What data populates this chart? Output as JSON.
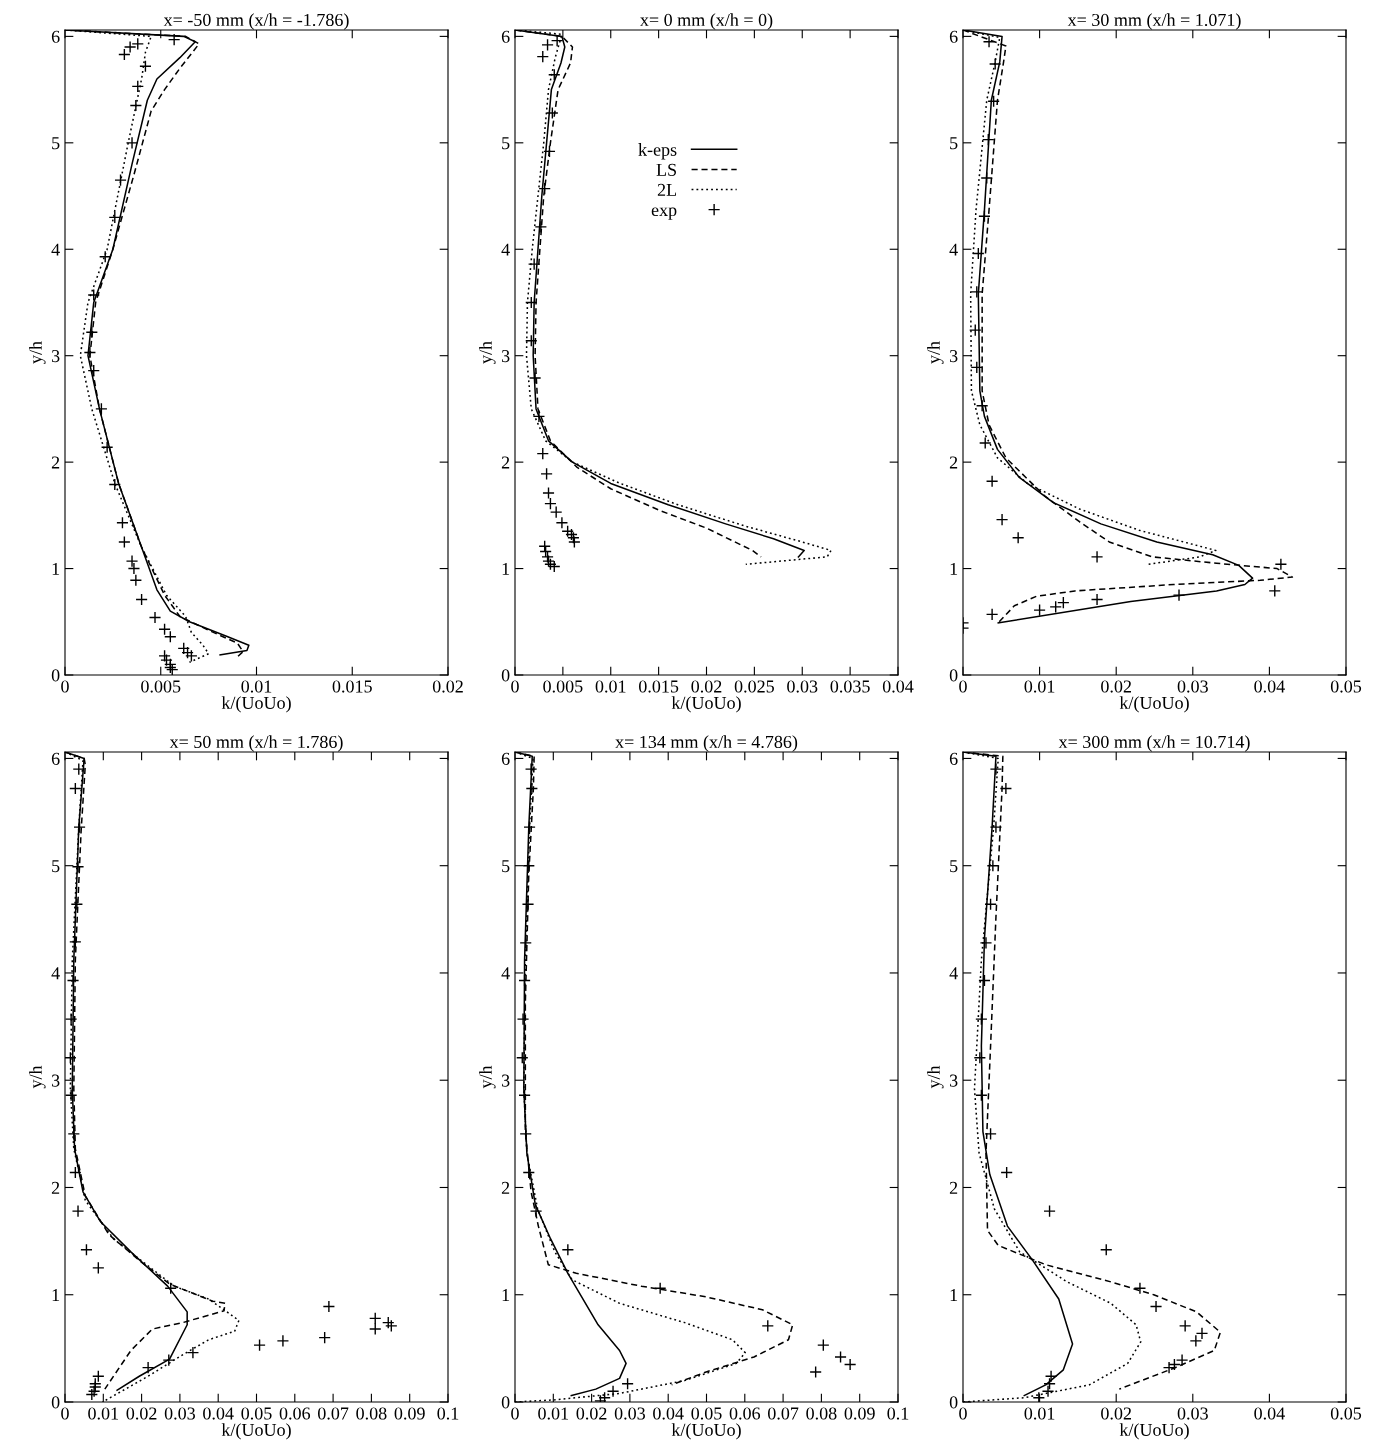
{
  "chart_data": [
    {
      "type": "line",
      "title": "x= -50 mm (x/h = -1.786)",
      "xlabel": "k/(UoUo)",
      "ylabel": "y/h",
      "xlim": [
        0,
        0.02
      ],
      "ylim": [
        0,
        6.06
      ],
      "xticks": [
        0,
        0.005,
        0.01,
        0.015,
        0.02
      ],
      "yticks": [
        0,
        1,
        2,
        3,
        4,
        5,
        6
      ],
      "series": [
        {
          "type": "line",
          "line_style": "solid",
          "marker": "none",
          "color": "#000000",
          "x": [
            0,
            0.0062,
            0.0068,
            0.006,
            0.0048,
            0.0043,
            0.0035,
            0.0025,
            0.0015,
            0.0012,
            0.0018,
            0.0028,
            0.004,
            0.0048,
            0.0055,
            0.0065,
            0.0085,
            0.0096,
            0.0095,
            0.0081
          ],
          "values": [
            6.06,
            6.0,
            5.95,
            5.8,
            5.6,
            5.4,
            4.8,
            4.0,
            3.5,
            3.0,
            2.5,
            1.8,
            1.2,
            0.8,
            0.6,
            0.5,
            0.36,
            0.28,
            0.23,
            0.19
          ]
        },
        {
          "type": "line",
          "line_style": "dashed",
          "marker": "none",
          "color": "#000000",
          "x": [
            0,
            0.0063,
            0.007,
            0.006,
            0.0052,
            0.0045,
            0.0036,
            0.0025,
            0.0016,
            0.0013,
            0.0018,
            0.0028,
            0.004,
            0.0052,
            0.006,
            0.0075,
            0.009,
            0.0093,
            0.009
          ],
          "values": [
            6.06,
            6.0,
            5.93,
            5.7,
            5.5,
            5.3,
            4.7,
            4.0,
            3.5,
            3.0,
            2.5,
            1.8,
            1.2,
            0.75,
            0.55,
            0.42,
            0.3,
            0.22,
            0.17
          ]
        },
        {
          "type": "line",
          "line_style": "dotted",
          "marker": "none",
          "color": "#000000",
          "x": [
            0,
            0.0045,
            0.0042,
            0.004,
            0.0033,
            0.0022,
            0.0012,
            0.0008,
            0.0014,
            0.0026,
            0.004,
            0.0053,
            0.0063,
            0.0066,
            0.0072,
            0.0075,
            0.0065
          ],
          "values": [
            6.06,
            6.0,
            5.85,
            5.6,
            5.0,
            4.0,
            3.5,
            3.0,
            2.5,
            1.8,
            1.2,
            0.75,
            0.55,
            0.4,
            0.28,
            0.2,
            0.12
          ]
        },
        {
          "type": "scatter",
          "marker": "cross",
          "color": "#000000",
          "x": [
            0.0057,
            0.0038,
            0.0034,
            0.0031,
            0.0042,
            0.0038,
            0.0037,
            0.0035,
            0.0029,
            0.0026,
            0.0021,
            0.0015,
            0.0014,
            0.0013,
            0.0015,
            0.0019,
            0.0022,
            0.0026,
            0.003,
            0.0031,
            0.0035,
            0.0036,
            0.0037,
            0.004,
            0.0047,
            0.0052,
            0.0055,
            0.0062,
            0.0064,
            0.0066,
            0.0052,
            0.0053,
            0.0055,
            0.0055,
            0.0056
          ],
          "values": [
            5.97,
            5.93,
            5.9,
            5.83,
            5.72,
            5.53,
            5.35,
            5.0,
            4.65,
            4.3,
            3.93,
            3.57,
            3.22,
            3.03,
            2.86,
            2.5,
            2.14,
            1.79,
            1.43,
            1.25,
            1.07,
            1.0,
            0.89,
            0.71,
            0.54,
            0.43,
            0.36,
            0.25,
            0.21,
            0.18,
            0.18,
            0.14,
            0.1,
            0.07,
            0.05
          ]
        }
      ]
    },
    {
      "type": "line",
      "title": "x= 0 mm (x/h = 0)",
      "xlabel": "k/(UoUo)",
      "ylabel": "y/h",
      "xlim": [
        0,
        0.04
      ],
      "ylim": [
        0,
        6.06
      ],
      "xticks": [
        0,
        0.005,
        0.01,
        0.015,
        0.02,
        0.025,
        0.03,
        0.035,
        0.04
      ],
      "yticks": [
        0,
        1,
        2,
        3,
        4,
        5,
        6
      ],
      "legend": "top",
      "series": [
        {
          "type": "line",
          "name": "k-eps",
          "line_style": "solid",
          "marker": "none",
          "color": "#000000",
          "x": [
            0,
            0.0049,
            0.0052,
            0.0048,
            0.0038,
            0.0033,
            0.0028,
            0.0024,
            0.002,
            0.0019,
            0.0022,
            0.0035,
            0.006,
            0.01,
            0.016,
            0.022,
            0.027,
            0.0302,
            0.0296
          ],
          "values": [
            6.06,
            6.0,
            5.9,
            5.75,
            5.5,
            5.0,
            4.5,
            4.0,
            3.5,
            3.0,
            2.5,
            2.2,
            2.0,
            1.8,
            1.6,
            1.42,
            1.28,
            1.17,
            1.11
          ]
        },
        {
          "type": "line",
          "name": "LS",
          "line_style": "dashed",
          "marker": "none",
          "color": "#000000",
          "x": [
            0,
            0.0049,
            0.006,
            0.0058,
            0.0045,
            0.0037,
            0.003,
            0.0026,
            0.0022,
            0.0021,
            0.0024,
            0.0037,
            0.0065,
            0.01,
            0.015,
            0.02,
            0.0248,
            0.0257
          ],
          "values": [
            6.06,
            6.0,
            5.9,
            5.75,
            5.5,
            5.0,
            4.5,
            4.0,
            3.5,
            3.0,
            2.5,
            2.2,
            1.95,
            1.75,
            1.55,
            1.38,
            1.17,
            1.11
          ]
        },
        {
          "type": "line",
          "name": "2L",
          "line_style": "dotted",
          "marker": "none",
          "color": "#000000",
          "x": [
            0,
            0.0049,
            0.0042,
            0.0035,
            0.003,
            0.0024,
            0.0018,
            0.0013,
            0.0012,
            0.0017,
            0.0032,
            0.006,
            0.011,
            0.017,
            0.024,
            0.03,
            0.033,
            0.0326,
            0.0241
          ],
          "values": [
            6.06,
            6.02,
            5.8,
            5.5,
            5.0,
            4.5,
            4.0,
            3.5,
            3.0,
            2.5,
            2.2,
            2.0,
            1.8,
            1.6,
            1.4,
            1.25,
            1.17,
            1.11,
            1.04
          ]
        },
        {
          "type": "scatter",
          "name": "exp",
          "marker": "cross",
          "color": "#000000",
          "x": [
            0.0044,
            0.0034,
            0.0029,
            0.0041,
            0.0039,
            0.0036,
            0.0031,
            0.0027,
            0.002,
            0.0017,
            0.0017,
            0.0021,
            0.0025,
            0.0029,
            0.0033,
            0.0035,
            0.0037,
            0.0043,
            0.0049,
            0.0055,
            0.0059,
            0.0061,
            0.0062,
            0.0031,
            0.0032,
            0.0034,
            0.0035,
            0.0037,
            0.0041
          ],
          "values": [
            5.96,
            5.92,
            5.81,
            5.64,
            5.28,
            4.92,
            4.57,
            4.21,
            3.86,
            3.5,
            3.14,
            2.79,
            2.43,
            2.08,
            1.89,
            1.71,
            1.61,
            1.53,
            1.43,
            1.35,
            1.32,
            1.29,
            1.25,
            1.21,
            1.16,
            1.11,
            1.07,
            1.04,
            1.02
          ]
        }
      ]
    },
    {
      "type": "line",
      "title": "x= 30 mm (x/h = 1.071)",
      "xlabel": "k/(UoUo)",
      "ylabel": "y/h",
      "xlim": [
        0,
        0.05
      ],
      "ylim": [
        0,
        6.06
      ],
      "xticks": [
        0,
        0.01,
        0.02,
        0.03,
        0.04,
        0.05
      ],
      "yticks": [
        0,
        1,
        2,
        3,
        4,
        5,
        6
      ],
      "series": [
        {
          "type": "line",
          "line_style": "solid",
          "marker": "none",
          "color": "#000000",
          "x": [
            0,
            0.0051,
            0.0048,
            0.0037,
            0.0028,
            0.002,
            0.0022,
            0.0028,
            0.0045,
            0.0073,
            0.0118,
            0.018,
            0.0253,
            0.0326,
            0.036,
            0.0378,
            0.0368,
            0.0331,
            0.0219,
            0.0046
          ],
          "values": [
            6.06,
            6.0,
            5.76,
            5.4,
            4.37,
            3.58,
            2.67,
            2.43,
            2.12,
            1.86,
            1.62,
            1.42,
            1.25,
            1.13,
            1.03,
            0.91,
            0.85,
            0.79,
            0.69,
            0.49
          ]
        },
        {
          "type": "line",
          "line_style": "dashed",
          "marker": "none",
          "color": "#000000",
          "x": [
            0,
            0.0056,
            0.0053,
            0.0045,
            0.0034,
            0.0025,
            0.0025,
            0.0034,
            0.0056,
            0.0107,
            0.0152,
            0.0191,
            0.0247,
            0.0331,
            0.041,
            0.043,
            0.0388,
            0.0275,
            0.0146,
            0.0096,
            0.0067,
            0.0046
          ],
          "values": [
            6.06,
            5.91,
            5.76,
            5.4,
            4.37,
            3.58,
            2.67,
            2.35,
            2.04,
            1.68,
            1.44,
            1.25,
            1.11,
            1.05,
            1.0,
            0.92,
            0.89,
            0.85,
            0.79,
            0.74,
            0.65,
            0.49
          ]
        },
        {
          "type": "line",
          "line_style": "dotted",
          "marker": "none",
          "color": "#000000",
          "x": [
            0,
            0.0048,
            0.0042,
            0.0031,
            0.0017,
            0.001,
            0.0011,
            0.0022,
            0.0045,
            0.0084,
            0.0152,
            0.023,
            0.033,
            0.0309,
            0.0242
          ],
          "values": [
            6.06,
            5.99,
            5.76,
            5.4,
            4.37,
            3.58,
            2.67,
            2.35,
            2.04,
            1.8,
            1.56,
            1.36,
            1.17,
            1.11,
            1.04
          ]
        },
        {
          "type": "scatter",
          "marker": "cross",
          "color": "#000000",
          "x": [
            0.0034,
            0.0042,
            0.004,
            0.0033,
            0.0031,
            0.0028,
            0.002,
            0.0018,
            0.0016,
            0.0018,
            0.0025,
            0.0029,
            0.0038,
            0.0051,
            0.0072,
            0.0175,
            0.0415,
            0.0407,
            0.0282,
            0.0175,
            0.0131,
            0.0121,
            0.01,
            0.0038,
            0,
            0
          ],
          "values": [
            5.95,
            5.74,
            5.39,
            5.03,
            4.67,
            4.31,
            3.96,
            3.6,
            3.24,
            2.89,
            2.53,
            2.18,
            1.82,
            1.46,
            1.29,
            1.11,
            1.04,
            0.79,
            0.75,
            0.71,
            0.68,
            0.64,
            0.61,
            0.57,
            0.49,
            0.44
          ]
        }
      ]
    },
    {
      "type": "line",
      "title": "x= 50 mm (x/h = 1.786)",
      "xlabel": "k/(UoUo)",
      "ylabel": "y/h",
      "xlim": [
        0,
        0.1
      ],
      "ylim": [
        0,
        6.06
      ],
      "xticks": [
        0,
        0.01,
        0.02,
        0.03,
        0.04,
        0.05,
        0.06,
        0.07,
        0.08,
        0.09,
        0.1
      ],
      "yticks": [
        0,
        1,
        2,
        3,
        4,
        5,
        6
      ],
      "series": [
        {
          "type": "line",
          "line_style": "solid",
          "marker": "none",
          "color": "#000000",
          "x": [
            0,
            0.005,
            0.0036,
            0.0023,
            0.0019,
            0.0025,
            0.0047,
            0.0093,
            0.0172,
            0.0268,
            0.0319,
            0.0319,
            0.0273,
            0.0194,
            0.0136
          ],
          "values": [
            6.06,
            6.0,
            5.36,
            4.12,
            2.92,
            2.36,
            1.96,
            1.68,
            1.4,
            1.08,
            0.84,
            0.72,
            0.4,
            0.24,
            0.11
          ]
        },
        {
          "type": "line",
          "line_style": "dashed",
          "marker": "none",
          "color": "#000000",
          "x": [
            0,
            0.005,
            0.0053,
            0.0042,
            0.0027,
            0.0023,
            0.0027,
            0.0053,
            0.0115,
            0.0194,
            0.0273,
            0.0386,
            0.0418,
            0.0415,
            0.0307,
            0.0228,
            0.0172,
            0.0104
          ],
          "values": [
            6.06,
            6.0,
            5.94,
            5.32,
            4.12,
            2.92,
            2.36,
            1.92,
            1.56,
            1.32,
            1.1,
            0.94,
            0.92,
            0.85,
            0.74,
            0.68,
            0.48,
            0.12
          ]
        },
        {
          "type": "line",
          "line_style": "dotted",
          "marker": "none",
          "color": "#000000",
          "x": [
            0,
            0.0047,
            0.0036,
            0.0019,
            0.0014,
            0.0023,
            0.0053,
            0.0127,
            0.0206,
            0.0285,
            0.0375,
            0.0415,
            0.0454,
            0.0443,
            0.0375,
            0.0307,
            0.0217,
            0.0098
          ],
          "values": [
            6.06,
            5.98,
            5.36,
            4.12,
            2.92,
            2.36,
            1.88,
            1.52,
            1.3,
            1.08,
            0.96,
            0.86,
            0.76,
            0.66,
            0.58,
            0.44,
            0.24,
            0.0
          ]
        },
        {
          "type": "scatter",
          "marker": "cross",
          "color": "#000000",
          "x": [
            0.0036,
            0.0027,
            0.0038,
            0.0034,
            0.0031,
            0.0027,
            0.0021,
            0.0016,
            0.0014,
            0.0016,
            0.0023,
            0.0027,
            0.0034,
            0.0056,
            0.0087,
            0.0276,
            0.0689,
            0.081,
            0.0844,
            0.0852,
            0.081,
            0.0678,
            0.0569,
            0.0508,
            0.0334,
            0.0271,
            0.0217,
            0.0087,
            0.0079,
            0.0079,
            0.0076,
            0.007
          ],
          "values": [
            5.9,
            5.72,
            5.36,
            4.99,
            4.64,
            4.29,
            3.93,
            3.57,
            3.21,
            2.86,
            2.5,
            2.14,
            1.78,
            1.42,
            1.25,
            1.06,
            0.89,
            0.78,
            0.74,
            0.71,
            0.68,
            0.6,
            0.57,
            0.53,
            0.46,
            0.39,
            0.32,
            0.24,
            0.17,
            0.14,
            0.1,
            0.07
          ]
        }
      ]
    },
    {
      "type": "line",
      "title": "x= 134 mm (x/h = 4.786)",
      "xlabel": "k/(UoUo)",
      "ylabel": "y/h",
      "xlim": [
        0,
        0.1
      ],
      "ylim": [
        0,
        6.06
      ],
      "xticks": [
        0,
        0.01,
        0.02,
        0.03,
        0.04,
        0.05,
        0.06,
        0.07,
        0.08,
        0.09,
        0.1
      ],
      "yticks": [
        0,
        1,
        2,
        3,
        4,
        5,
        6
      ],
      "series": [
        {
          "type": "line",
          "line_style": "solid",
          "marker": "none",
          "color": "#000000",
          "x": [
            0,
            0.0045,
            0.0036,
            0.0025,
            0.0023,
            0.0031,
            0.0053,
            0.0093,
            0.0138,
            0.0217,
            0.0273,
            0.029,
            0.0273,
            0.0211,
            0.0147
          ],
          "values": [
            6.06,
            6.02,
            5.36,
            4.12,
            2.92,
            2.32,
            1.84,
            1.52,
            1.2,
            0.72,
            0.48,
            0.36,
            0.22,
            0.12,
            0.06
          ]
        },
        {
          "type": "line",
          "line_style": "dashed",
          "marker": "none",
          "color": "#000000",
          "x": [
            0,
            0.005,
            0.0048,
            0.0036,
            0.0027,
            0.0027,
            0.0042,
            0.0061,
            0.0087,
            0.016,
            0.033,
            0.0499,
            0.0646,
            0.0725,
            0.0714,
            0.0624,
            0.0499,
            0.0409
          ],
          "values": [
            6.06,
            6.02,
            5.72,
            4.92,
            3.72,
            2.52,
            1.96,
            1.64,
            1.28,
            1.2,
            1.08,
            0.98,
            0.86,
            0.72,
            0.58,
            0.42,
            0.28,
            0.16
          ]
        },
        {
          "type": "line",
          "line_style": "dotted",
          "marker": "none",
          "color": "#000000",
          "x": [
            0,
            0.0047,
            0.0038,
            0.0027,
            0.0023,
            0.0031,
            0.0059,
            0.0104,
            0.0149,
            0.0273,
            0.0443,
            0.0568,
            0.0601,
            0.0578,
            0.0443,
            0.0273,
            0.0104,
            0
          ],
          "values": [
            6.06,
            6.0,
            5.36,
            4.12,
            2.92,
            2.32,
            1.8,
            1.4,
            1.14,
            0.92,
            0.74,
            0.58,
            0.46,
            0.36,
            0.2,
            0.08,
            0.02,
            0
          ]
        },
        {
          "type": "scatter",
          "marker": "cross",
          "color": "#000000",
          "x": [
            0.0042,
            0.0044,
            0.0038,
            0.0036,
            0.0034,
            0.0028,
            0.0025,
            0.0021,
            0.0019,
            0.0025,
            0.0028,
            0.0036,
            0.0055,
            0.0138,
            0.0379,
            0.066,
            0.0805,
            0.085,
            0.0875,
            0.0785,
            0.0294,
            0.0256,
            0.0234,
            0.0223
          ],
          "values": [
            5.9,
            5.72,
            5.36,
            5.0,
            4.64,
            4.28,
            3.93,
            3.57,
            3.21,
            2.86,
            2.5,
            2.14,
            1.78,
            1.42,
            1.06,
            0.71,
            0.53,
            0.42,
            0.35,
            0.28,
            0.17,
            0.1,
            0.04,
            0.01
          ]
        }
      ]
    },
    {
      "type": "line",
      "title": "x= 300 mm (x/h = 10.714)",
      "xlabel": "k/(UoUo)",
      "ylabel": "y/h",
      "xlim": [
        0,
        0.05
      ],
      "ylim": [
        0,
        6.06
      ],
      "xticks": [
        0,
        0.01,
        0.02,
        0.03,
        0.04,
        0.05
      ],
      "yticks": [
        0,
        1,
        2,
        3,
        4,
        5,
        6
      ],
      "series": [
        {
          "type": "line",
          "line_style": "solid",
          "marker": "none",
          "color": "#000000",
          "x": [
            0,
            0.0043,
            0.0038,
            0.0028,
            0.0024,
            0.0026,
            0.0035,
            0.0058,
            0.0091,
            0.0125,
            0.0143,
            0.0131,
            0.0108,
            0.008
          ],
          "values": [
            6.06,
            6.02,
            5.36,
            4.32,
            3.32,
            2.52,
            2.12,
            1.64,
            1.32,
            0.96,
            0.54,
            0.3,
            0.16,
            0.06
          ]
        },
        {
          "type": "line",
          "line_style": "dashed",
          "marker": "none",
          "color": "#000000",
          "x": [
            0,
            0.0052,
            0.0051,
            0.0043,
            0.0036,
            0.003,
            0.0032,
            0.0046,
            0.0108,
            0.0193,
            0.0249,
            0.0305,
            0.0336,
            0.0328,
            0.0277,
            0.0204
          ],
          "values": [
            6.06,
            6.02,
            5.72,
            4.52,
            3.32,
            2.32,
            1.6,
            1.46,
            1.28,
            1.12,
            1.0,
            0.84,
            0.65,
            0.48,
            0.32,
            0.12
          ]
        },
        {
          "type": "line",
          "line_style": "dotted",
          "marker": "none",
          "color": "#000000",
          "x": [
            0,
            0.0046,
            0.004,
            0.0024,
            0.0015,
            0.0021,
            0.0041,
            0.0074,
            0.0136,
            0.0193,
            0.0226,
            0.0232,
            0.0215,
            0.0165,
            0.008,
            0
          ],
          "values": [
            6.06,
            6.0,
            5.36,
            4.12,
            2.92,
            2.32,
            1.8,
            1.4,
            1.12,
            0.92,
            0.72,
            0.56,
            0.36,
            0.16,
            0.04,
            0
          ]
        },
        {
          "type": "scatter",
          "marker": "cross",
          "color": "#000000",
          "x": [
            0.0043,
            0.0056,
            0.0043,
            0.0039,
            0.0036,
            0.003,
            0.0028,
            0.0024,
            0.0022,
            0.0024,
            0.0036,
            0.0057,
            0.0113,
            0.0187,
            0.0231,
            0.0252,
            0.029,
            0.0312,
            0.0304,
            0.0286,
            0.0276,
            0.0269,
            0.0115,
            0.0113,
            0.0111,
            0.0099
          ],
          "values": [
            5.9,
            5.72,
            5.36,
            5.0,
            4.64,
            4.28,
            3.93,
            3.57,
            3.21,
            2.86,
            2.5,
            2.14,
            1.78,
            1.42,
            1.06,
            0.89,
            0.71,
            0.64,
            0.57,
            0.39,
            0.35,
            0.32,
            0.24,
            0.17,
            0.1,
            0.04
          ]
        }
      ]
    }
  ]
}
